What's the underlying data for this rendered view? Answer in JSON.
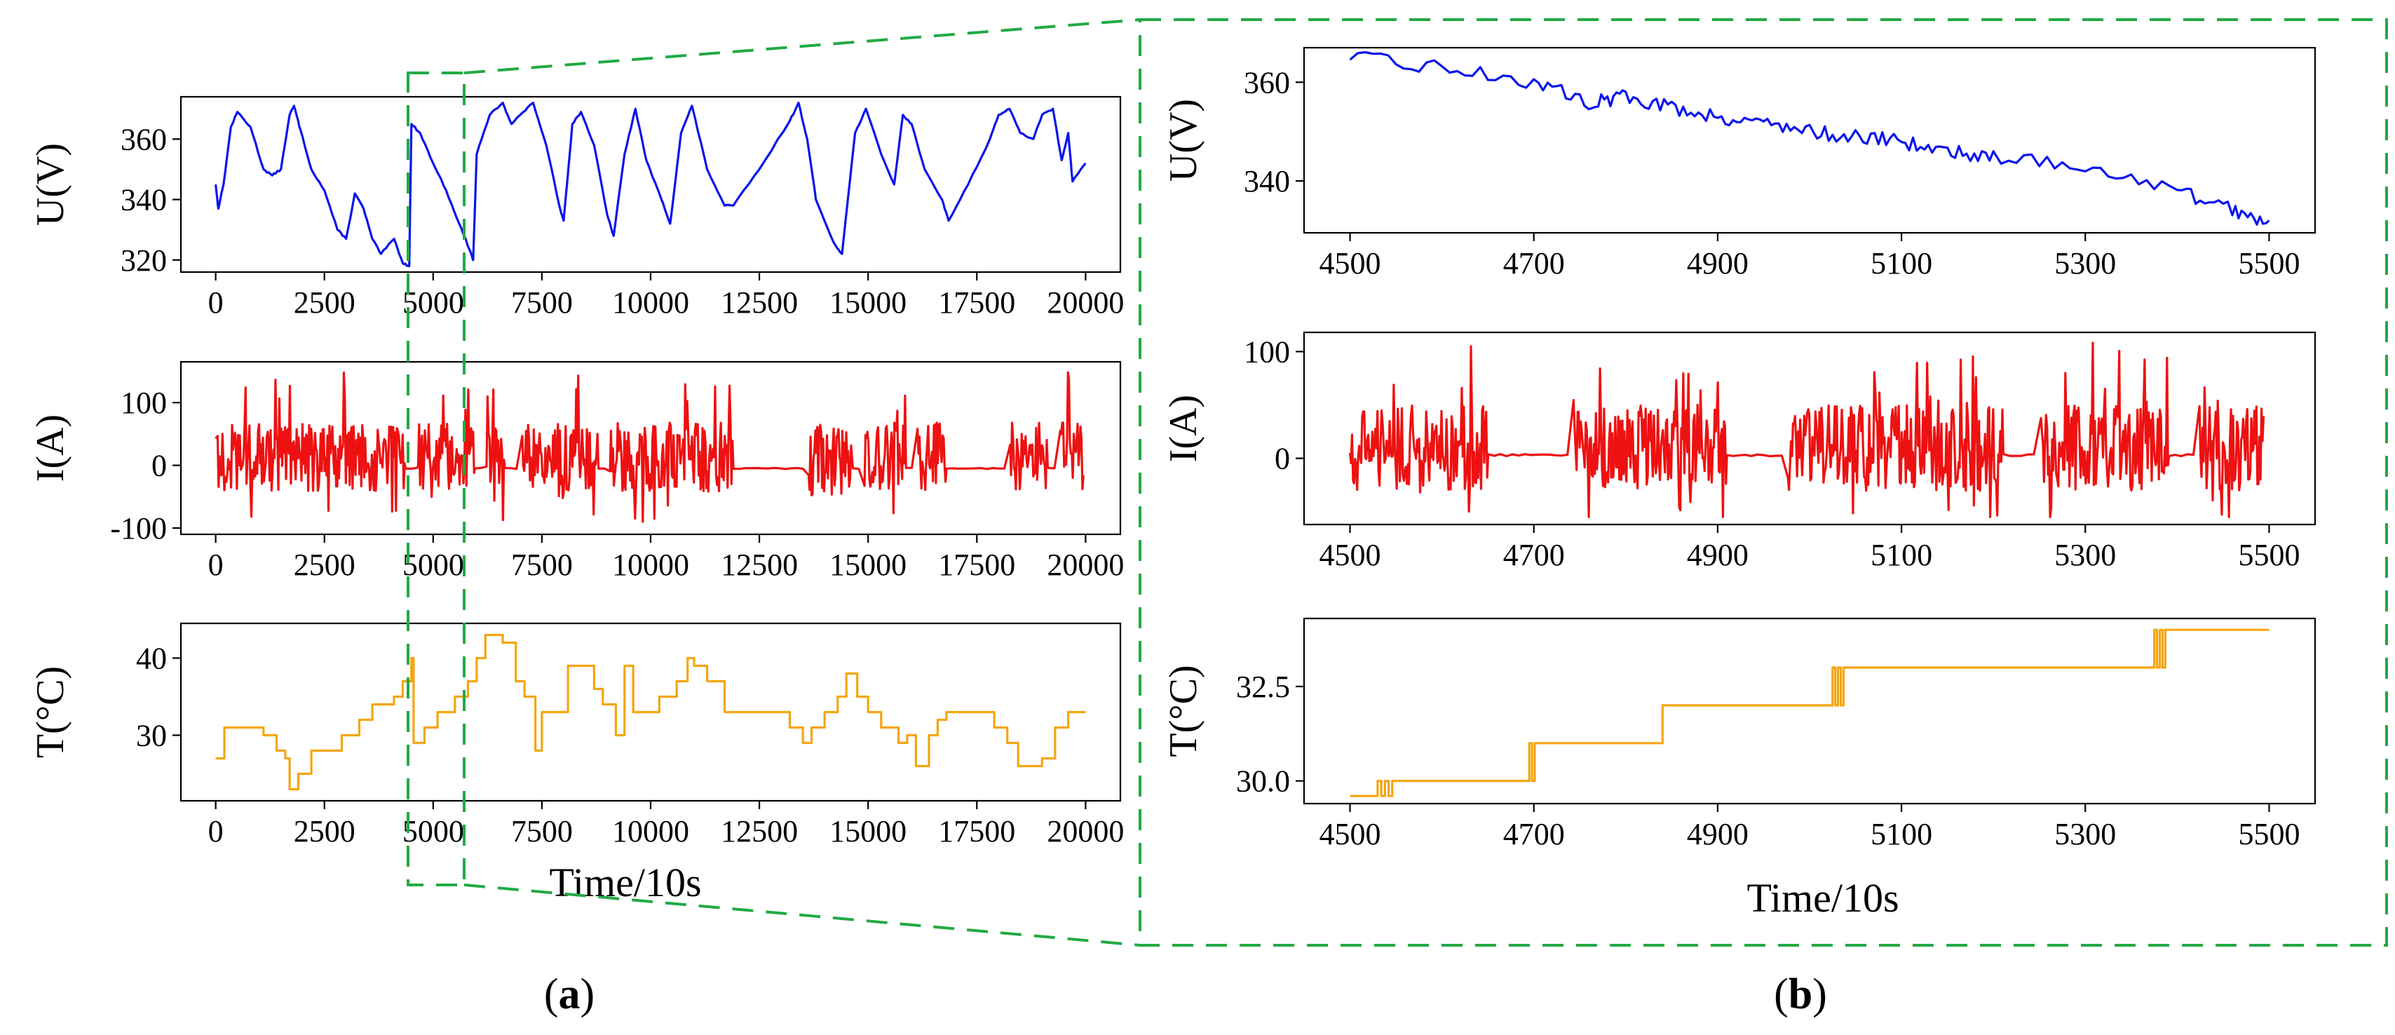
{
  "figure": {
    "panel_a_label": {
      "open": "(",
      "letter": "a",
      "close": ")"
    },
    "panel_b_label": {
      "open": "(",
      "letter": "b",
      "close": ")"
    },
    "colors": {
      "voltage": "#0a14ee",
      "current": "#ee1111",
      "temperature": "#f5a511",
      "zoom_box": "#22aa44"
    }
  },
  "chart_data": [
    {
      "id": "a-voltage",
      "type": "line",
      "ylabel": "U(V)",
      "xlabel": "",
      "xlim": [
        -800,
        20800
      ],
      "ylim": [
        316,
        374
      ],
      "xticks": [
        0,
        2500,
        5000,
        7500,
        10000,
        12500,
        15000,
        17500,
        20000
      ],
      "yticks": [
        320,
        340,
        360
      ],
      "series": [
        {
          "name": "U(V)",
          "color": "#0a14ee",
          "points": [
            [
              0,
              345
            ],
            [
              60,
              337
            ],
            [
              180,
              345
            ],
            [
              350,
              364
            ],
            [
              500,
              369
            ],
            [
              800,
              364
            ],
            [
              1100,
              350
            ],
            [
              1300,
              348
            ],
            [
              1500,
              350
            ],
            [
              1700,
              368
            ],
            [
              1800,
              371
            ],
            [
              1950,
              363
            ],
            [
              2200,
              350
            ],
            [
              2500,
              343
            ],
            [
              2800,
              330
            ],
            [
              3000,
              327
            ],
            [
              3200,
              342
            ],
            [
              3400,
              337
            ],
            [
              3600,
              327
            ],
            [
              3800,
              322
            ],
            [
              4100,
              327
            ],
            [
              4300,
              319
            ],
            [
              4450,
              318
            ],
            [
              4500,
              365
            ],
            [
              4700,
              362
            ],
            [
              5000,
              352
            ],
            [
              5300,
              343
            ],
            [
              5600,
              332
            ],
            [
              5850,
              323
            ],
            [
              5920,
              320
            ],
            [
              6000,
              355
            ],
            [
              6300,
              368
            ],
            [
              6600,
              372
            ],
            [
              6800,
              365
            ],
            [
              7000,
              368
            ],
            [
              7300,
              372
            ],
            [
              7600,
              358
            ],
            [
              7900,
              338
            ],
            [
              8000,
              333
            ],
            [
              8200,
              365
            ],
            [
              8400,
              369
            ],
            [
              8700,
              358
            ],
            [
              9000,
              335
            ],
            [
              9150,
              328
            ],
            [
              9400,
              355
            ],
            [
              9650,
              370
            ],
            [
              9900,
              353
            ],
            [
              10250,
              340
            ],
            [
              10450,
              332
            ],
            [
              10700,
              362
            ],
            [
              10950,
              371
            ],
            [
              11300,
              350
            ],
            [
              11700,
              338
            ],
            [
              11900,
              338
            ],
            [
              12500,
              350
            ],
            [
              13200,
              366
            ],
            [
              13400,
              372
            ],
            [
              13600,
              360
            ],
            [
              13800,
              340
            ],
            [
              14200,
              326
            ],
            [
              14400,
              322
            ],
            [
              14700,
              362
            ],
            [
              14950,
              370
            ],
            [
              15300,
              355
            ],
            [
              15600,
              345
            ],
            [
              15800,
              368
            ],
            [
              16000,
              365
            ],
            [
              16300,
              350
            ],
            [
              16700,
              340
            ],
            [
              16850,
              333
            ],
            [
              17300,
              345
            ],
            [
              17800,
              360
            ],
            [
              18000,
              368
            ],
            [
              18250,
              370
            ],
            [
              18500,
              362
            ],
            [
              18800,
              360
            ],
            [
              19000,
              368
            ],
            [
              19250,
              370
            ],
            [
              19450,
              353
            ],
            [
              19600,
              362
            ],
            [
              19700,
              346
            ],
            [
              20000,
              352
            ]
          ]
        }
      ]
    },
    {
      "id": "a-current",
      "type": "line",
      "ylabel": "I(A)",
      "xlabel": "",
      "xlim": [
        -800,
        20800
      ],
      "ylim": [
        -110,
        165
      ],
      "xticks": [
        0,
        2500,
        5000,
        7500,
        10000,
        12500,
        15000,
        17500,
        20000
      ],
      "yticks": [
        -100,
        0,
        100
      ],
      "series": [
        {
          "name": "I(A)",
          "color": "#ee1111",
          "noise_amplitude": 55,
          "noise_clip": [
            -90,
            150
          ],
          "active_intervals": [
            [
              0,
              4350
            ],
            [
              4500,
              5950
            ],
            [
              6100,
              6650
            ],
            [
              7000,
              8800
            ],
            [
              9000,
              11900
            ],
            [
              13500,
              14650
            ],
            [
              14900,
              15850
            ],
            [
              16100,
              16800
            ],
            [
              18200,
              19150
            ],
            [
              19350,
              19950
            ]
          ],
          "quiet_level": -5
        }
      ]
    },
    {
      "id": "a-temperature",
      "type": "line",
      "ylabel": "T(°C)",
      "xlabel": "Time/10s",
      "xlim": [
        -800,
        20800
      ],
      "ylim": [
        21.5,
        44.5
      ],
      "xticks": [
        0,
        2500,
        5000,
        7500,
        10000,
        12500,
        15000,
        17500,
        20000
      ],
      "yticks": [
        30,
        40
      ],
      "series": [
        {
          "name": "T(°C)",
          "color": "#f5a511",
          "step": true,
          "points": [
            [
              0,
              27
            ],
            [
              200,
              31
            ],
            [
              800,
              31
            ],
            [
              1100,
              30
            ],
            [
              1400,
              28
            ],
            [
              1600,
              27
            ],
            [
              1700,
              23
            ],
            [
              1900,
              25
            ],
            [
              2200,
              28
            ],
            [
              2700,
              28
            ],
            [
              2900,
              30
            ],
            [
              3300,
              32
            ],
            [
              3600,
              34
            ],
            [
              4100,
              35
            ],
            [
              4300,
              37
            ],
            [
              4500,
              40
            ],
            [
              4550,
              29
            ],
            [
              4800,
              31
            ],
            [
              5100,
              33
            ],
            [
              5500,
              35
            ],
            [
              5800,
              37
            ],
            [
              6000,
              40
            ],
            [
              6200,
              43
            ],
            [
              6600,
              42
            ],
            [
              6900,
              37
            ],
            [
              7100,
              35
            ],
            [
              7350,
              28
            ],
            [
              7500,
              33
            ],
            [
              7900,
              33
            ],
            [
              8100,
              39
            ],
            [
              8700,
              36
            ],
            [
              8900,
              34
            ],
            [
              9200,
              30
            ],
            [
              9400,
              39
            ],
            [
              9600,
              33
            ],
            [
              10000,
              33
            ],
            [
              10200,
              35
            ],
            [
              10600,
              37
            ],
            [
              10850,
              40
            ],
            [
              11000,
              39
            ],
            [
              11300,
              37
            ],
            [
              11700,
              33
            ],
            [
              12800,
              33
            ],
            [
              13200,
              31
            ],
            [
              13500,
              29
            ],
            [
              13700,
              31
            ],
            [
              14000,
              33
            ],
            [
              14300,
              35
            ],
            [
              14500,
              38
            ],
            [
              14750,
              35
            ],
            [
              15000,
              33
            ],
            [
              15300,
              31
            ],
            [
              15700,
              29
            ],
            [
              15900,
              30
            ],
            [
              16100,
              26
            ],
            [
              16400,
              30
            ],
            [
              16600,
              32
            ],
            [
              16800,
              33
            ],
            [
              17600,
              33
            ],
            [
              17900,
              31
            ],
            [
              18200,
              29
            ],
            [
              18450,
              26
            ],
            [
              19000,
              27
            ],
            [
              19300,
              31
            ],
            [
              19600,
              33
            ],
            [
              20000,
              33
            ]
          ]
        }
      ]
    },
    {
      "id": "b-voltage",
      "type": "line",
      "ylabel": "U(V)",
      "xlabel": "",
      "xlim": [
        4450,
        5550
      ],
      "ylim": [
        329.5,
        367
      ],
      "xticks": [
        4500,
        4700,
        4900,
        5100,
        5300,
        5500
      ],
      "yticks": [
        340,
        360
      ],
      "series": [
        {
          "name": "U(V)",
          "color": "#0a14ee",
          "noise_amplitude": 1.5,
          "points": [
            [
              4500,
              365
            ],
            [
              4600,
              363
            ],
            [
              4700,
              360
            ],
            [
              4760,
              356
            ],
            [
              4800,
              357
            ],
            [
              4850,
              355
            ],
            [
              4900,
              353
            ],
            [
              4950,
              352
            ],
            [
              5000,
              350
            ],
            [
              5050,
              349
            ],
            [
              5100,
              348
            ],
            [
              5150,
              346
            ],
            [
              5200,
              345
            ],
            [
              5300,
              343
            ],
            [
              5400,
              338
            ],
            [
              5460,
              334
            ],
            [
              5500,
              332
            ]
          ]
        }
      ]
    },
    {
      "id": "b-current",
      "type": "line",
      "ylabel": "I(A)",
      "xlabel": "",
      "xlim": [
        4450,
        5550
      ],
      "ylim": [
        -62,
        118
      ],
      "xticks": [
        4500,
        4700,
        4900,
        5100,
        5300,
        5500
      ],
      "yticks": [
        0,
        100
      ],
      "series": [
        {
          "name": "I(A)",
          "color": "#ee1111",
          "noise_amplitude": 40,
          "noise_clip": [
            -55,
            110
          ],
          "active_intervals": [
            [
              4500,
              4650
            ],
            [
              4740,
              4910
            ],
            [
              4975,
              5210
            ],
            [
              5250,
              5390
            ],
            [
              5420,
              5495
            ]
          ],
          "quiet_level": 3
        }
      ]
    },
    {
      "id": "b-temperature",
      "type": "line",
      "ylabel": "T(°C)",
      "xlabel": "Time/10s",
      "xlim": [
        4450,
        5550
      ],
      "ylim": [
        29.4,
        34.3
      ],
      "xticks": [
        4500,
        4700,
        4900,
        5100,
        5300,
        5500
      ],
      "yticks": [
        30.0,
        32.5
      ],
      "series": [
        {
          "name": "T(°C)",
          "color": "#f5a511",
          "step": true,
          "points": [
            [
              4500,
              29.6
            ],
            [
              4530,
              30.0
            ],
            [
              4534,
              29.6
            ],
            [
              4538,
              30.0
            ],
            [
              4542,
              29.6
            ],
            [
              4546,
              30.0
            ],
            [
              4695,
              31.0
            ],
            [
              4698,
              30.0
            ],
            [
              4701,
              31.0
            ],
            [
              4840,
              32.0
            ],
            [
              5025,
              33.0
            ],
            [
              5028,
              32.0
            ],
            [
              5031,
              33.0
            ],
            [
              5034,
              32.0
            ],
            [
              5037,
              33.0
            ],
            [
              5375,
              34.0
            ],
            [
              5378,
              33.0
            ],
            [
              5381,
              34.0
            ],
            [
              5384,
              33.0
            ],
            [
              5387,
              34.0
            ],
            [
              5500,
              34.0
            ]
          ]
        }
      ]
    }
  ]
}
